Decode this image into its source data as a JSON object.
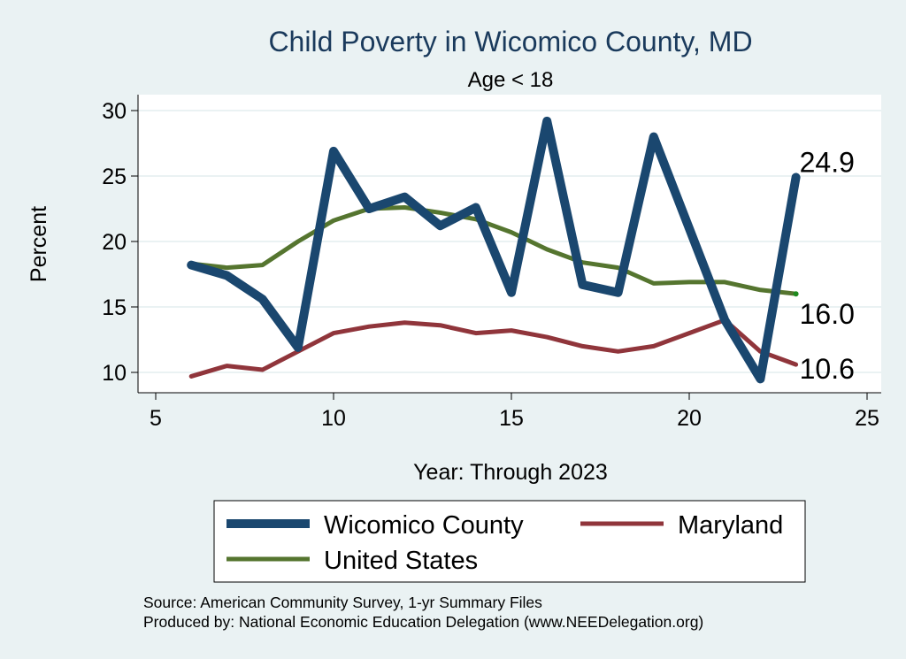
{
  "chart_data": {
    "type": "line",
    "title": "Child Poverty in Wicomico County, MD",
    "subtitle": "Age < 18",
    "xlabel": "Year: Through 2023",
    "ylabel": "Percent",
    "xlim": [
      5,
      25
    ],
    "ylim": [
      8.5,
      30.5
    ],
    "xticks": [
      5,
      10,
      15,
      20,
      25
    ],
    "yticks": [
      10,
      15,
      20,
      25,
      30
    ],
    "grid": true,
    "legend_placement": "bottom",
    "series": [
      {
        "name": "Wicomico County",
        "color": "#1a476f",
        "x": [
          6,
          7,
          8,
          9,
          10,
          11,
          12,
          13,
          14,
          15,
          16,
          17,
          18,
          19,
          20,
          21,
          22,
          23
        ],
        "y": [
          18.2,
          17.4,
          15.6,
          11.9,
          26.9,
          22.5,
          23.4,
          21.2,
          22.6,
          16.1,
          29.2,
          16.7,
          16.1,
          28.0,
          21.0,
          14.0,
          9.5,
          24.9
        ],
        "end_label": "24.9"
      },
      {
        "name": "Maryland",
        "color": "#90353b",
        "x": [
          6,
          7,
          8,
          9,
          10,
          11,
          12,
          13,
          14,
          15,
          16,
          17,
          18,
          19,
          20,
          21,
          22,
          23
        ],
        "y": [
          9.7,
          10.5,
          10.2,
          11.6,
          13.0,
          13.5,
          13.8,
          13.6,
          13.0,
          13.2,
          12.7,
          12.0,
          11.6,
          12.0,
          13.0,
          14.0,
          11.6,
          10.6
        ],
        "end_label": "10.6"
      },
      {
        "name": "United States",
        "color": "#55752f",
        "x": [
          6,
          7,
          8,
          9,
          10,
          11,
          12,
          13,
          14,
          15,
          16,
          17,
          18,
          19,
          20,
          21,
          22,
          23
        ],
        "y": [
          18.3,
          18.0,
          18.2,
          20.0,
          21.6,
          22.5,
          22.6,
          22.2,
          21.7,
          20.7,
          19.4,
          18.4,
          18.0,
          16.8,
          16.9,
          16.9,
          16.3,
          16.0
        ],
        "end_label": "16.0"
      }
    ]
  },
  "notes": {
    "source": "Source: American Community Survey, 1-yr Summary Files",
    "produced_by": "Produced by: National Economic Education Delegation (www.NEEDelegation.org)"
  }
}
